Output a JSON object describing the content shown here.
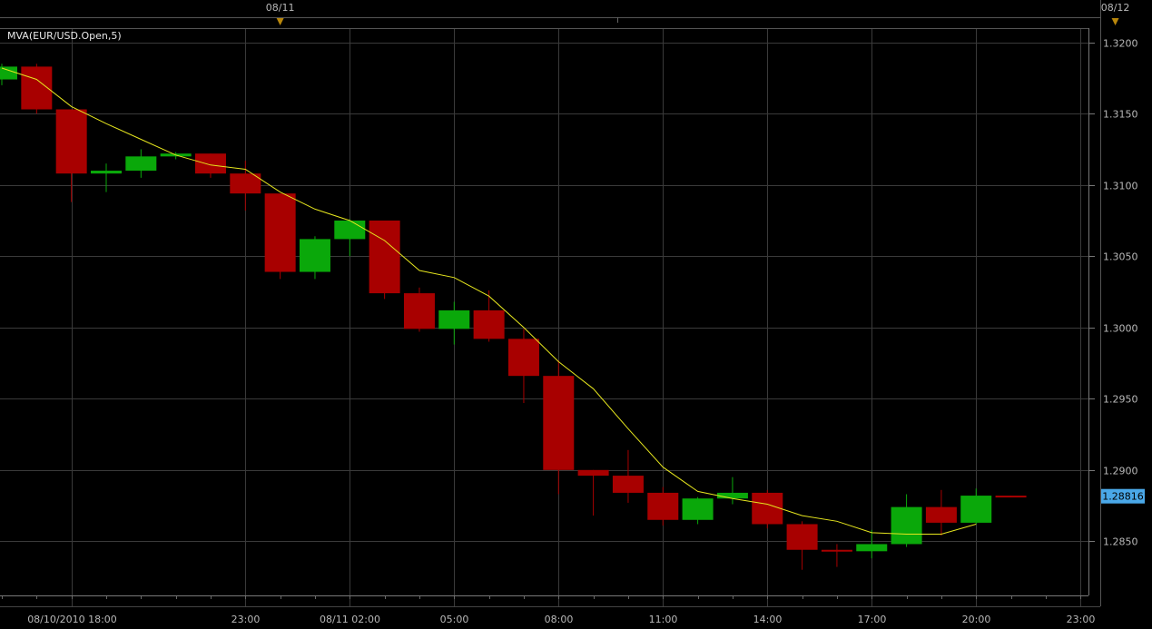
{
  "study_label": "MVA(EUR/USD.Open,5)",
  "last_price_tag": "1.28816",
  "colors": {
    "background": "#000000",
    "grid": "#3a3a3a",
    "up_candle": "#0aa80a",
    "down_candle": "#a80000",
    "moving_average": "#e6e61e",
    "price_tag": "#4aa8e8",
    "date_marker": "#b8860b"
  },
  "top_axis": {
    "labels": [
      "08/11",
      "08/12"
    ]
  },
  "chart_data": {
    "type": "candlestick",
    "instrument": "EUR/USD",
    "interval_hours": 1,
    "price_axis": {
      "ticks": [
        "1.3200",
        "1.3150",
        "1.3100",
        "1.3050",
        "1.3000",
        "1.2950",
        "1.2900",
        "1.2850"
      ],
      "ylim": [
        1.2812,
        1.321
      ]
    },
    "time_axis": {
      "ticks": [
        "08/10/2010 18:00",
        "23:00",
        "08/11 02:00",
        "05:00",
        "08:00",
        "11:00",
        "14:00",
        "17:00",
        "20:00",
        "23:00"
      ]
    },
    "grid": true,
    "candles": [
      {
        "time": "2010-08-10 16:00",
        "open": 1.3174,
        "high": 1.3185,
        "low": 1.317,
        "close": 1.3183
      },
      {
        "time": "2010-08-10 17:00",
        "open": 1.3183,
        "high": 1.3185,
        "low": 1.315,
        "close": 1.3153
      },
      {
        "time": "2010-08-10 18:00",
        "open": 1.3153,
        "high": 1.3153,
        "low": 1.3088,
        "close": 1.3108
      },
      {
        "time": "2010-08-10 19:00",
        "open": 1.3108,
        "high": 1.3115,
        "low": 1.3095,
        "close": 1.311
      },
      {
        "time": "2010-08-10 20:00",
        "open": 1.311,
        "high": 1.3125,
        "low": 1.3105,
        "close": 1.312
      },
      {
        "time": "2010-08-10 21:00",
        "open": 1.312,
        "high": 1.3123,
        "low": 1.3118,
        "close": 1.3122
      },
      {
        "time": "2010-08-10 22:00",
        "open": 1.3122,
        "high": 1.3122,
        "low": 1.3105,
        "close": 1.3108
      },
      {
        "time": "2010-08-10 23:00",
        "open": 1.3108,
        "high": 1.3117,
        "low": 1.3082,
        "close": 1.3094
      },
      {
        "time": "2010-08-11 00:00",
        "open": 1.3094,
        "high": 1.3094,
        "low": 1.3034,
        "close": 1.3039
      },
      {
        "time": "2010-08-11 01:00",
        "open": 1.3039,
        "high": 1.3064,
        "low": 1.3034,
        "close": 1.3062
      },
      {
        "time": "2010-08-11 02:00",
        "open": 1.3062,
        "high": 1.3076,
        "low": 1.305,
        "close": 1.3075
      },
      {
        "time": "2010-08-11 03:00",
        "open": 1.3075,
        "high": 1.3075,
        "low": 1.302,
        "close": 1.3024
      },
      {
        "time": "2010-08-11 04:00",
        "open": 1.3024,
        "high": 1.3028,
        "low": 1.2997,
        "close": 1.2999
      },
      {
        "time": "2010-08-11 05:00",
        "open": 1.2999,
        "high": 1.3018,
        "low": 1.2988,
        "close": 1.3012
      },
      {
        "time": "2010-08-11 06:00",
        "open": 1.3012,
        "high": 1.3026,
        "low": 1.299,
        "close": 1.2992
      },
      {
        "time": "2010-08-11 07:00",
        "open": 1.2992,
        "high": 1.2999,
        "low": 1.2947,
        "close": 1.2966
      },
      {
        "time": "2010-08-11 08:00",
        "open": 1.2966,
        "high": 1.2977,
        "low": 1.2883,
        "close": 1.29
      },
      {
        "time": "2010-08-11 09:00",
        "open": 1.29,
        "high": 1.29,
        "low": 1.2868,
        "close": 1.2896
      },
      {
        "time": "2010-08-11 10:00",
        "open": 1.2896,
        "high": 1.2914,
        "low": 1.2877,
        "close": 1.2884
      },
      {
        "time": "2010-08-11 11:00",
        "open": 1.2884,
        "high": 1.2888,
        "low": 1.2861,
        "close": 1.2865
      },
      {
        "time": "2010-08-11 12:00",
        "open": 1.2865,
        "high": 1.2881,
        "low": 1.2862,
        "close": 1.288
      },
      {
        "time": "2010-08-11 13:00",
        "open": 1.288,
        "high": 1.2895,
        "low": 1.2876,
        "close": 1.2884
      },
      {
        "time": "2010-08-11 14:00",
        "open": 1.2884,
        "high": 1.2886,
        "low": 1.2859,
        "close": 1.2862
      },
      {
        "time": "2010-08-11 15:00",
        "open": 1.2862,
        "high": 1.2864,
        "low": 1.283,
        "close": 1.2844
      },
      {
        "time": "2010-08-11 16:00",
        "open": 1.2844,
        "high": 1.2848,
        "low": 1.2832,
        "close": 1.2843
      },
      {
        "time": "2010-08-11 17:00",
        "open": 1.2843,
        "high": 1.2858,
        "low": 1.2838,
        "close": 1.2848
      },
      {
        "time": "2010-08-11 18:00",
        "open": 1.2848,
        "high": 1.2883,
        "low": 1.2846,
        "close": 1.2874
      },
      {
        "time": "2010-08-11 19:00",
        "open": 1.2874,
        "high": 1.2886,
        "low": 1.2854,
        "close": 1.2863
      },
      {
        "time": "2010-08-11 20:00",
        "open": 1.2863,
        "high": 1.2887,
        "low": 1.2862,
        "close": 1.2882
      },
      {
        "time": "2010-08-11 21:00",
        "open": 1.2882,
        "high": 1.2882,
        "low": 1.2881,
        "close": 1.2881
      }
    ],
    "moving_average": {
      "name": "MVA(EUR/USD.Open,5)",
      "values": [
        1.3182,
        1.3174,
        1.3155,
        1.3143,
        1.3132,
        1.3121,
        1.3114,
        1.3111,
        1.3095,
        1.3083,
        1.3075,
        1.3061,
        1.304,
        1.3035,
        1.3022,
        1.3,
        1.2976,
        1.2957,
        1.2929,
        1.2902,
        1.2885,
        1.288,
        1.2876,
        1.2868,
        1.2864,
        1.2856,
        1.2855,
        1.2855,
        1.2862
      ]
    }
  }
}
